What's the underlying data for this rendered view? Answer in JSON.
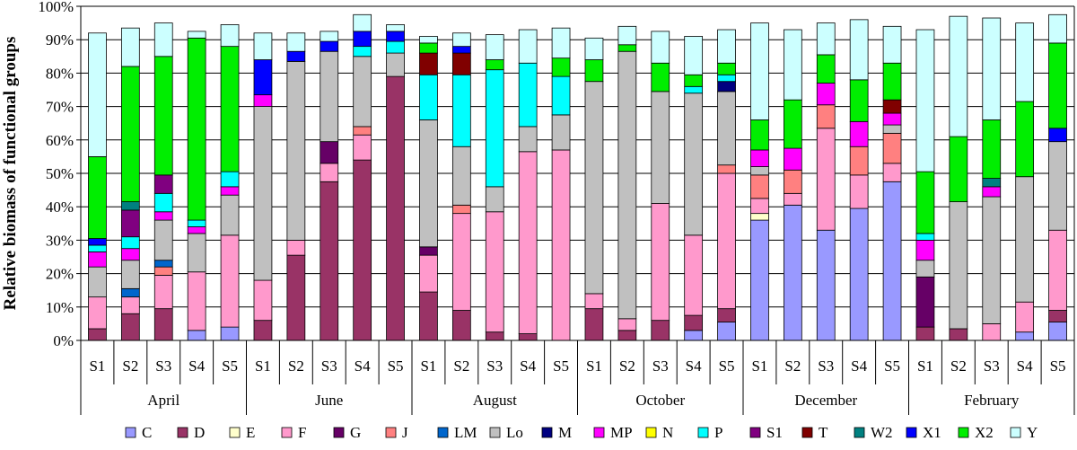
{
  "chart_data": {
    "type": "bar",
    "stacked": true,
    "title": "",
    "xlabel": "",
    "ylabel": "Relative biomass of functional groups",
    "ylim": [
      0,
      100
    ],
    "ytick_step": 10,
    "ytick_suffix": "%",
    "grid": true,
    "legend": "bottom",
    "months": [
      "April",
      "June",
      "August",
      "October",
      "December",
      "February"
    ],
    "stations": [
      "S1",
      "S2",
      "S3",
      "S4",
      "S5"
    ],
    "series": [
      {
        "name": "C",
        "color": "#9999ff",
        "values": [
          0,
          0,
          0,
          3,
          4,
          0,
          0,
          0,
          0,
          0,
          0,
          0,
          0,
          0,
          0,
          0,
          0,
          0,
          3,
          5.5,
          36,
          40.5,
          33,
          39.5,
          47.5,
          0,
          0,
          0,
          2.5,
          5.5
        ]
      },
      {
        "name": "D",
        "color": "#993366",
        "values": [
          3.5,
          8,
          9.5,
          0,
          0,
          6,
          25.5,
          47.5,
          54,
          79,
          14.5,
          9,
          2.5,
          2,
          0,
          9.5,
          3,
          6,
          4.5,
          4,
          0,
          0,
          0,
          0,
          0,
          4,
          3.5,
          0,
          0,
          3.5
        ]
      },
      {
        "name": "E",
        "color": "#ffffcc",
        "values": [
          0,
          0,
          0,
          0,
          0,
          0,
          0,
          0,
          0,
          0,
          0,
          0,
          0,
          0,
          0,
          0,
          0,
          0,
          0,
          0,
          2,
          0,
          0,
          0,
          0,
          0,
          0,
          0,
          0,
          0
        ]
      },
      {
        "name": "F",
        "color": "#ff99cc",
        "values": [
          9.5,
          5,
          10,
          17.5,
          27.5,
          12,
          4.5,
          5.5,
          7.5,
          0,
          11,
          29,
          36,
          54.5,
          57,
          4.5,
          3.5,
          35,
          24,
          40.5,
          4.5,
          3.5,
          30.5,
          10,
          5.5,
          0,
          0,
          5,
          9,
          24
        ]
      },
      {
        "name": "G",
        "color": "#660066",
        "values": [
          0,
          0,
          0,
          0,
          0,
          0,
          0,
          6.5,
          0,
          0,
          2.5,
          0,
          0,
          0,
          0,
          0,
          0,
          0,
          0,
          0,
          0,
          0,
          0,
          0,
          0,
          15,
          0,
          0,
          0,
          0
        ]
      },
      {
        "name": "J",
        "color": "#ff8080",
        "values": [
          0,
          0,
          2.5,
          0,
          0,
          0,
          0,
          0,
          2.5,
          0,
          0,
          2.5,
          0,
          0,
          0,
          0,
          0,
          0,
          0,
          2.5,
          7,
          7,
          7,
          8.5,
          9,
          0,
          0,
          0,
          0,
          0
        ]
      },
      {
        "name": "LM",
        "color": "#0066cc",
        "values": [
          0,
          2.5,
          2,
          0,
          0,
          0,
          0,
          0,
          0,
          0,
          0,
          0,
          0,
          0,
          0,
          0,
          0,
          0,
          0,
          0,
          0,
          0,
          0,
          0,
          0,
          0,
          0,
          0,
          0,
          0
        ]
      },
      {
        "name": "Lo",
        "color": "#c0c0c0",
        "values": [
          9,
          8.5,
          12,
          11.5,
          12,
          52,
          53.5,
          27,
          21,
          7,
          38,
          17.5,
          7.5,
          7.5,
          10.5,
          63.5,
          80,
          33.5,
          42.5,
          22,
          2.5,
          0,
          0,
          0,
          2.5,
          5,
          38,
          38,
          37.5,
          26.5
        ]
      },
      {
        "name": "M",
        "color": "#000080",
        "values": [
          0,
          0,
          0,
          0,
          0,
          0,
          0,
          0,
          0,
          0,
          0,
          0,
          0,
          0,
          0,
          0,
          0,
          0,
          0,
          3,
          0,
          0,
          0,
          0,
          0,
          0,
          0,
          0,
          0,
          0
        ]
      },
      {
        "name": "MP",
        "color": "#ff00ff",
        "values": [
          4.5,
          3.5,
          2.5,
          2,
          2.5,
          3.5,
          0,
          0,
          0,
          0,
          0,
          0,
          0,
          0,
          0,
          0,
          0,
          0,
          0,
          0,
          5,
          6.5,
          6.5,
          7.5,
          3.5,
          6,
          0,
          3,
          0,
          0
        ]
      },
      {
        "name": "N",
        "color": "#ffff00",
        "values": [
          0,
          0,
          0,
          0,
          0,
          0,
          0,
          0,
          0,
          0,
          0,
          0,
          0,
          0,
          0,
          0,
          0,
          0,
          0,
          0,
          0,
          0,
          0,
          0,
          0,
          0,
          0,
          0,
          0,
          0
        ]
      },
      {
        "name": "P",
        "color": "#00ffff",
        "values": [
          2,
          3.5,
          5.5,
          2,
          4.5,
          0,
          0,
          0,
          3,
          3.5,
          13.5,
          21.5,
          35,
          19,
          11.5,
          0,
          0,
          0,
          2,
          2,
          0,
          0,
          0,
          0,
          0,
          2,
          0,
          0,
          0,
          0
        ]
      },
      {
        "name": "S1",
        "color": "#800080",
        "values": [
          0,
          8,
          5.5,
          0,
          0,
          0,
          0,
          0,
          0,
          0,
          0,
          0,
          0,
          0,
          0,
          0,
          0,
          0,
          0,
          0,
          0,
          0,
          0,
          0,
          0,
          0,
          0,
          0,
          0,
          0
        ]
      },
      {
        "name": "T",
        "color": "#800000",
        "values": [
          0,
          0,
          0,
          0,
          0,
          0,
          0,
          0,
          0,
          0,
          6.5,
          6.5,
          0,
          0,
          0,
          0,
          0,
          0,
          0,
          0,
          0,
          0,
          0,
          0,
          4,
          0,
          0,
          0,
          0,
          0
        ]
      },
      {
        "name": "W2",
        "color": "#008080",
        "values": [
          0,
          2.5,
          0,
          0,
          0,
          0,
          0,
          0,
          0,
          0,
          0,
          0,
          0,
          0,
          0,
          0,
          0,
          0,
          0,
          0,
          0,
          0,
          0,
          0,
          0,
          0,
          0,
          2.5,
          0,
          0
        ]
      },
      {
        "name": "X1",
        "color": "#0000ff",
        "values": [
          2,
          0,
          0,
          0,
          0,
          10.5,
          3,
          3,
          4.5,
          3,
          0,
          2,
          0,
          0,
          0,
          0,
          0,
          0,
          0,
          0,
          0,
          0,
          0,
          0,
          0,
          0,
          0,
          0,
          0,
          4
        ]
      },
      {
        "name": "X2",
        "color": "#00ee00",
        "values": [
          24.5,
          40.5,
          35.5,
          54.5,
          37.5,
          0,
          0,
          0,
          0,
          0,
          3,
          0,
          3,
          0,
          5.5,
          6.5,
          2,
          8.5,
          3.5,
          3.5,
          9,
          14.5,
          8.5,
          12.5,
          11,
          18.5,
          19.5,
          17.5,
          22.5,
          25.5
        ]
      },
      {
        "name": "Y",
        "color": "#ccffff",
        "values": [
          37,
          11.5,
          10,
          2,
          6.5,
          8,
          5.5,
          3,
          5,
          2,
          2,
          4,
          7.5,
          10,
          9,
          6.5,
          5.5,
          9.5,
          11.5,
          10,
          29,
          21,
          9.5,
          18,
          11,
          42.5,
          36,
          30.5,
          23.5,
          8.5
        ]
      }
    ]
  }
}
